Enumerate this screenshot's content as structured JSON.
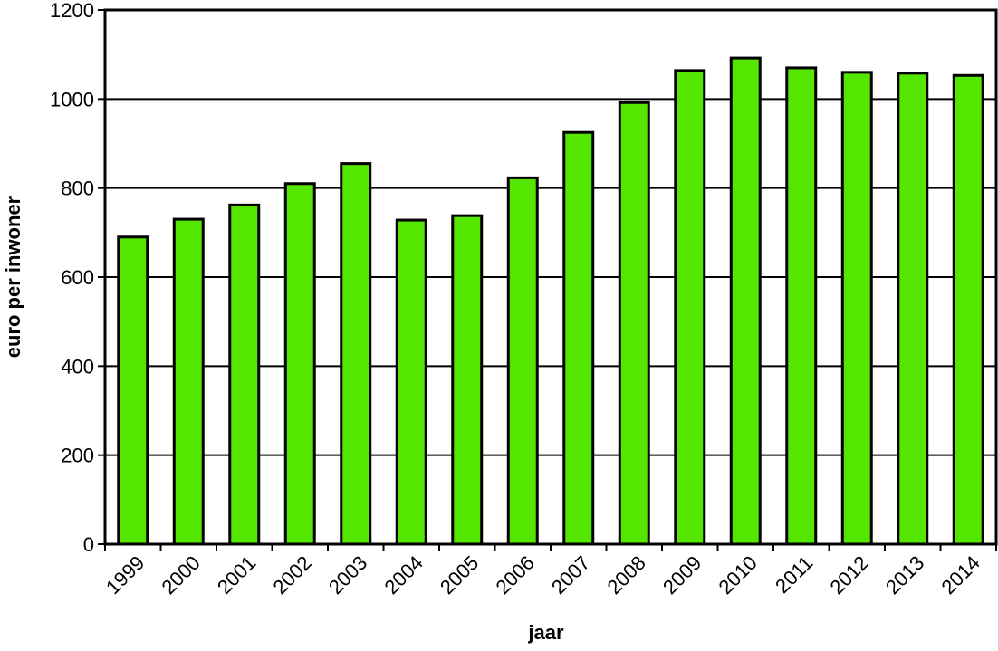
{
  "chart_data": {
    "type": "bar",
    "x_label": "jaar",
    "y_label": "euro per inwoner",
    "categories": [
      "1999",
      "2000",
      "2001",
      "2002",
      "2003",
      "2004",
      "2005",
      "2006",
      "2007",
      "2008",
      "2009",
      "2010",
      "2011",
      "2012",
      "2013",
      "2014"
    ],
    "values": [
      690,
      730,
      762,
      810,
      855,
      728,
      738,
      823,
      925,
      992,
      1064,
      1092,
      1070,
      1060,
      1058,
      1053
    ],
    "color": "#55e600",
    "ylim": [
      0,
      1200
    ],
    "yticks": [
      0,
      200,
      400,
      600,
      800,
      1000,
      1200
    ],
    "grid": true
  }
}
